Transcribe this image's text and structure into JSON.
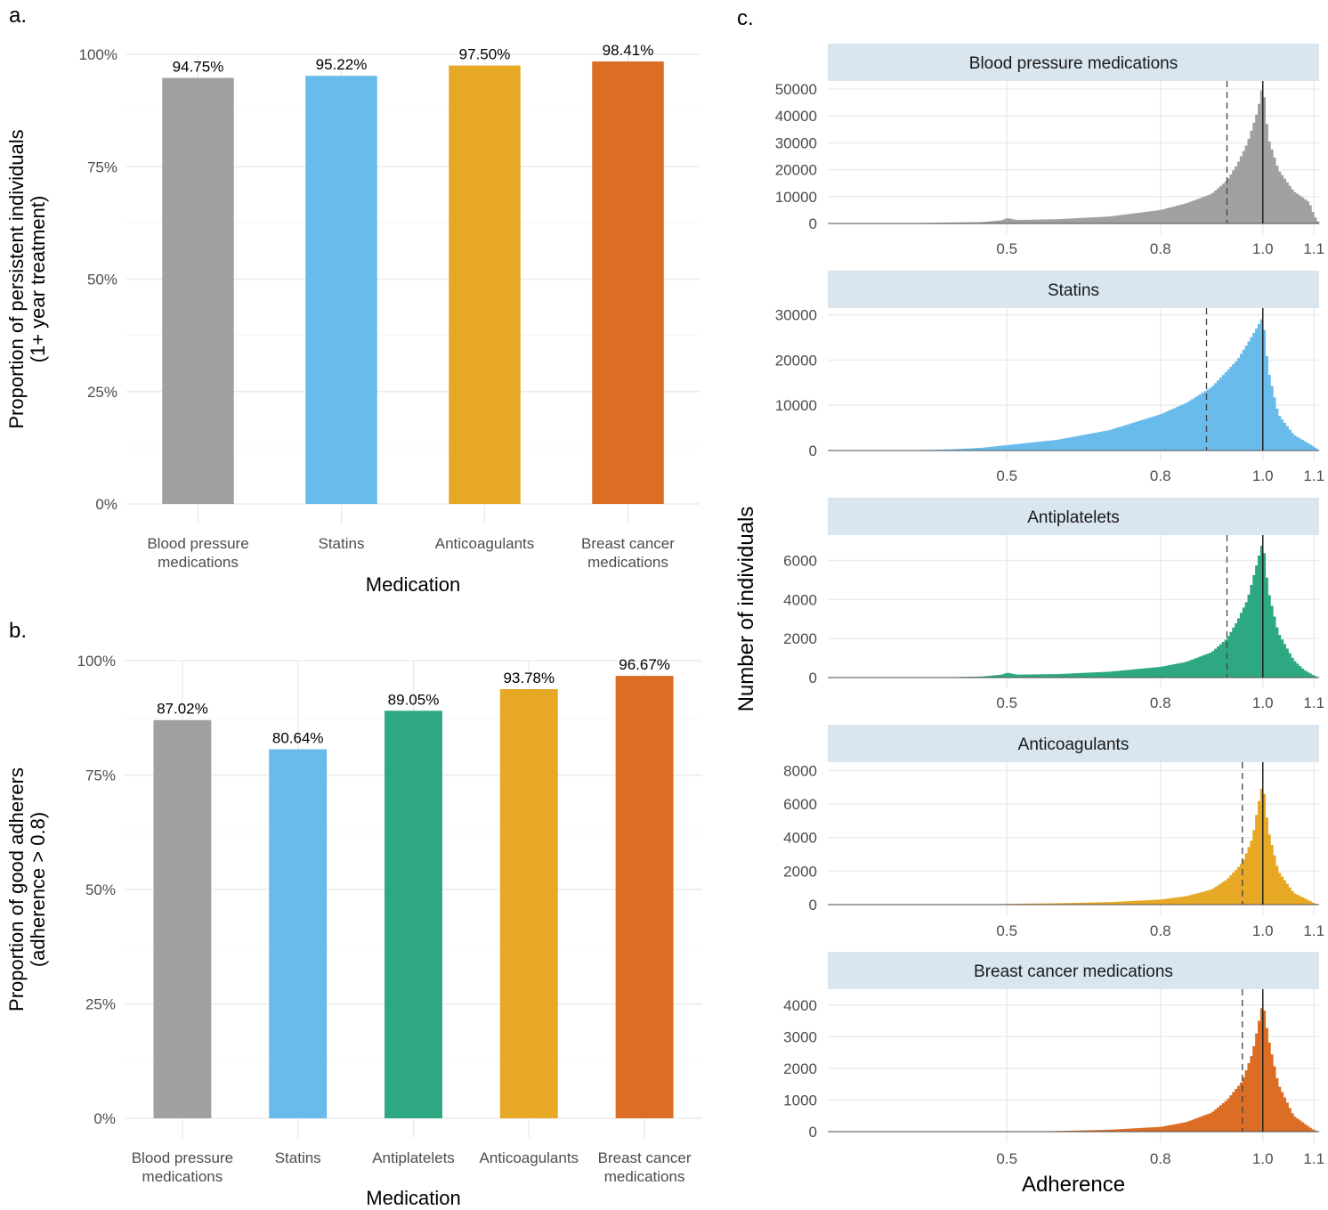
{
  "panels": {
    "a": "a.",
    "b": "b.",
    "c": "c."
  },
  "colors": {
    "Blood pressure medications": "#a0a0a0",
    "Statins": "#68bbea",
    "Antiplatelets": "#2ea882",
    "Anticoagulants": "#e7a825",
    "Breast cancer medications": "#dc6d24"
  },
  "chart_data": [
    {
      "id": "a",
      "type": "bar",
      "categories": [
        "Blood pressure\nmedications",
        "Statins",
        "Anticoagulants",
        "Breast cancer\nmedications"
      ],
      "series_keys": [
        "Blood pressure medications",
        "Statins",
        "Anticoagulants",
        "Breast cancer medications"
      ],
      "values": [
        94.75,
        95.22,
        97.5,
        98.41
      ],
      "value_labels": [
        "94.75%",
        "95.22%",
        "97.50%",
        "98.41%"
      ],
      "xlabel": "Medication",
      "ylabel": "Proportion of persistent individuals\n(1+ year treatment)",
      "ylim": [
        0,
        100
      ],
      "yticks": [
        0,
        25,
        50,
        75,
        100
      ],
      "ytick_labels": [
        "0%",
        "25%",
        "50%",
        "75%",
        "100%"
      ],
      "grid": true
    },
    {
      "id": "b",
      "type": "bar",
      "categories": [
        "Blood pressure\nmedications",
        "Statins",
        "Antiplatelets",
        "Anticoagulants",
        "Breast cancer\nmedications"
      ],
      "series_keys": [
        "Blood pressure medications",
        "Statins",
        "Antiplatelets",
        "Anticoagulants",
        "Breast cancer medications"
      ],
      "values": [
        87.02,
        80.64,
        89.05,
        93.78,
        96.67
      ],
      "value_labels": [
        "87.02%",
        "80.64%",
        "89.05%",
        "93.78%",
        "96.67%"
      ],
      "xlabel": "Medication",
      "ylabel": "Proportion of good adherers\n(adherence > 0.8)",
      "ylim": [
        0,
        100
      ],
      "yticks": [
        0,
        25,
        50,
        75,
        100
      ],
      "ytick_labels": [
        "0%",
        "25%",
        "50%",
        "75%",
        "100%"
      ],
      "grid": true
    },
    {
      "id": "c",
      "type": "histogram",
      "xlabel": "Adherence",
      "ylabel": "Number of individuals",
      "xtick_labels": [
        "0.5",
        "0.8",
        "1.0",
        "1.1"
      ],
      "facets": [
        {
          "title": "Blood pressure medications",
          "series_key": "Blood pressure medications",
          "xlim": [
            0.15,
            1.11
          ],
          "ylim": [
            0,
            53000
          ],
          "yticks": [
            0,
            10000,
            20000,
            30000,
            40000,
            50000
          ],
          "dashed_line": 0.93,
          "solid_line": 1.0,
          "profile": [
            [
              0.15,
              0
            ],
            [
              0.3,
              100
            ],
            [
              0.45,
              500
            ],
            [
              0.49,
              1200
            ],
            [
              0.5,
              2000
            ],
            [
              0.52,
              1300
            ],
            [
              0.6,
              1600
            ],
            [
              0.7,
              2600
            ],
            [
              0.8,
              5000
            ],
            [
              0.85,
              7500
            ],
            [
              0.9,
              11000
            ],
            [
              0.93,
              16000
            ],
            [
              0.95,
              22000
            ],
            [
              0.97,
              30000
            ],
            [
              0.99,
              42000
            ],
            [
              1.0,
              52000
            ],
            [
              1.01,
              32000
            ],
            [
              1.03,
              20000
            ],
            [
              1.06,
              12000
            ],
            [
              1.09,
              8000
            ],
            [
              1.1,
              3000
            ],
            [
              1.11,
              0
            ]
          ]
        },
        {
          "title": "Statins",
          "series_key": "Statins",
          "xlim": [
            0.15,
            1.11
          ],
          "ylim": [
            0,
            31500
          ],
          "yticks": [
            0,
            10000,
            20000,
            30000
          ],
          "dashed_line": 0.89,
          "solid_line": 1.0,
          "profile": [
            [
              0.15,
              0
            ],
            [
              0.3,
              0
            ],
            [
              0.4,
              300
            ],
            [
              0.45,
              600
            ],
            [
              0.5,
              1200
            ],
            [
              0.6,
              2400
            ],
            [
              0.7,
              4500
            ],
            [
              0.8,
              8000
            ],
            [
              0.85,
              10500
            ],
            [
              0.9,
              14000
            ],
            [
              0.95,
              20000
            ],
            [
              0.98,
              25500
            ],
            [
              0.995,
              28500
            ],
            [
              1.0,
              29500
            ],
            [
              1.01,
              18000
            ],
            [
              1.03,
              8000
            ],
            [
              1.06,
              3500
            ],
            [
              1.09,
              1500
            ],
            [
              1.1,
              800
            ],
            [
              1.11,
              0
            ]
          ]
        },
        {
          "title": "Antiplatelets",
          "series_key": "Antiplatelets",
          "xlim": [
            0.15,
            1.11
          ],
          "ylim": [
            0,
            7300
          ],
          "yticks": [
            0,
            2000,
            4000,
            6000
          ],
          "dashed_line": 0.93,
          "solid_line": 1.0,
          "profile": [
            [
              0.15,
              0
            ],
            [
              0.35,
              0
            ],
            [
              0.45,
              50
            ],
            [
              0.49,
              150
            ],
            [
              0.5,
              250
            ],
            [
              0.52,
              150
            ],
            [
              0.6,
              180
            ],
            [
              0.7,
              300
            ],
            [
              0.8,
              550
            ],
            [
              0.85,
              800
            ],
            [
              0.9,
              1300
            ],
            [
              0.93,
              2000
            ],
            [
              0.95,
              2900
            ],
            [
              0.97,
              4000
            ],
            [
              0.99,
              6000
            ],
            [
              1.0,
              7000
            ],
            [
              1.01,
              4500
            ],
            [
              1.03,
              2300
            ],
            [
              1.06,
              900
            ],
            [
              1.08,
              400
            ],
            [
              1.1,
              100
            ],
            [
              1.11,
              0
            ]
          ]
        },
        {
          "title": "Anticoagulants",
          "series_key": "Anticoagulants",
          "xlim": [
            0.15,
            1.11
          ],
          "ylim": [
            0,
            8500
          ],
          "yticks": [
            0,
            2000,
            4000,
            6000,
            8000
          ],
          "dashed_line": 0.96,
          "solid_line": 1.0,
          "profile": [
            [
              0.15,
              0
            ],
            [
              0.45,
              0
            ],
            [
              0.5,
              40
            ],
            [
              0.6,
              80
            ],
            [
              0.7,
              150
            ],
            [
              0.8,
              300
            ],
            [
              0.85,
              500
            ],
            [
              0.9,
              900
            ],
            [
              0.93,
              1500
            ],
            [
              0.96,
              2500
            ],
            [
              0.98,
              4000
            ],
            [
              0.99,
              5800
            ],
            [
              1.0,
              7300
            ],
            [
              1.01,
              4500
            ],
            [
              1.03,
              2000
            ],
            [
              1.06,
              700
            ],
            [
              1.09,
              250
            ],
            [
              1.1,
              80
            ],
            [
              1.11,
              0
            ]
          ]
        },
        {
          "title": "Breast cancer medications",
          "series_key": "Breast cancer medications",
          "xlim": [
            0.15,
            1.11
          ],
          "ylim": [
            0,
            4500
          ],
          "yticks": [
            0,
            1000,
            2000,
            3000,
            4000
          ],
          "dashed_line": 0.96,
          "solid_line": 1.0,
          "profile": [
            [
              0.15,
              0
            ],
            [
              0.5,
              0
            ],
            [
              0.6,
              20
            ],
            [
              0.7,
              60
            ],
            [
              0.8,
              150
            ],
            [
              0.85,
              300
            ],
            [
              0.9,
              600
            ],
            [
              0.93,
              1000
            ],
            [
              0.96,
              1600
            ],
            [
              0.98,
              2500
            ],
            [
              0.99,
              3300
            ],
            [
              1.0,
              4100
            ],
            [
              1.01,
              3000
            ],
            [
              1.03,
              1500
            ],
            [
              1.06,
              500
            ],
            [
              1.09,
              150
            ],
            [
              1.1,
              50
            ],
            [
              1.11,
              0
            ]
          ]
        }
      ]
    }
  ]
}
